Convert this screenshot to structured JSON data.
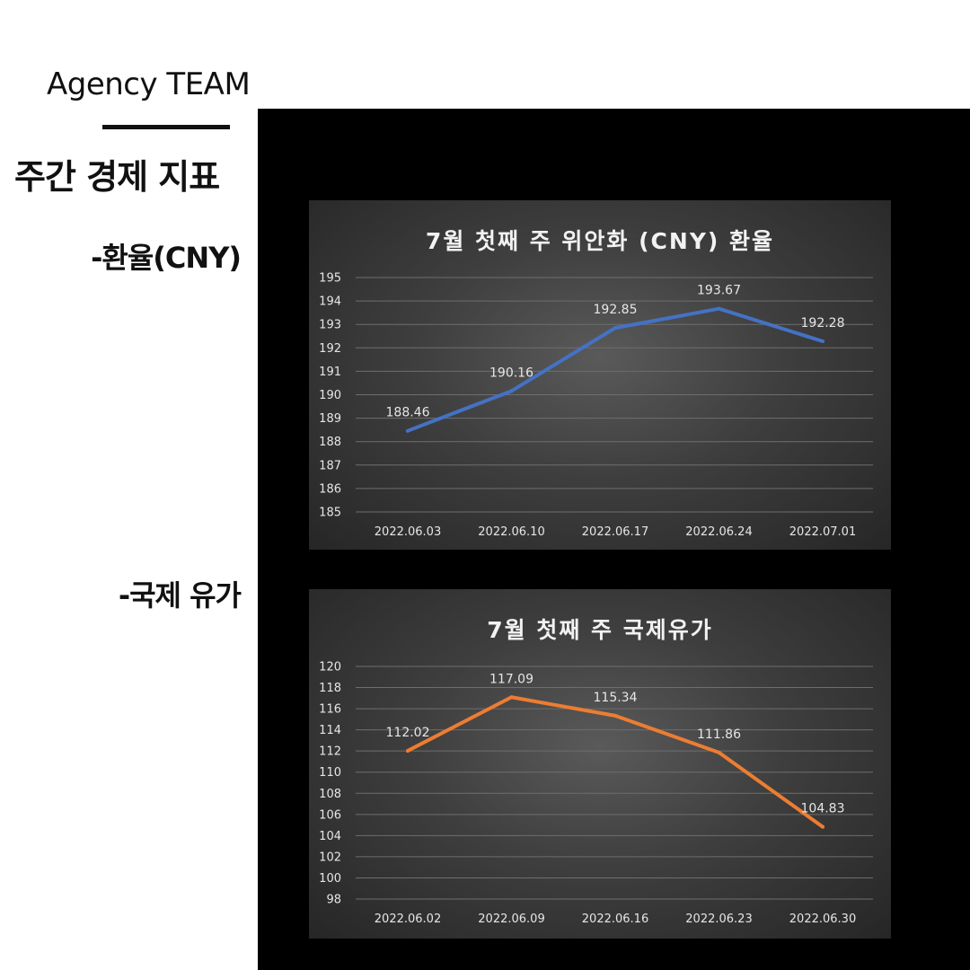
{
  "header": {
    "brand": "Agency TEAM",
    "title": "주간 경제 지표"
  },
  "sections": {
    "cny_label": "-환율(CNY)",
    "oil_label": "-국제 유가"
  },
  "chart_data": [
    {
      "type": "line",
      "title": "7월 첫째 주 위안화 (CNY) 환율",
      "categories": [
        "2022.06.03",
        "2022.06.10",
        "2022.06.17",
        "2022.06.24",
        "2022.07.01"
      ],
      "values": [
        188.46,
        190.16,
        192.85,
        193.67,
        192.28
      ],
      "data_labels": [
        "188.46",
        "190.16",
        "192.85",
        "193.67",
        "192.28"
      ],
      "yticks": [
        "195",
        "194",
        "193",
        "192",
        "191",
        "190",
        "189",
        "188",
        "187",
        "186",
        "185"
      ],
      "ylim": [
        185,
        195
      ],
      "color": "#4472c4",
      "grid": true
    },
    {
      "type": "line",
      "title": "7월 첫째 주 국제유가",
      "categories": [
        "2022.06.02",
        "2022.06.09",
        "2022.06.16",
        "2022.06.23",
        "2022.06.30"
      ],
      "values": [
        112.02,
        117.09,
        115.34,
        111.86,
        104.83
      ],
      "data_labels": [
        "112.02",
        "117.09",
        "115.34",
        "111.86",
        "104.83"
      ],
      "yticks": [
        "120",
        "118",
        "116",
        "114",
        "112",
        "110",
        "108",
        "106",
        "104",
        "102",
        "100",
        "98"
      ],
      "ylim": [
        98,
        120
      ],
      "color": "#ed7d31",
      "grid": true
    }
  ]
}
